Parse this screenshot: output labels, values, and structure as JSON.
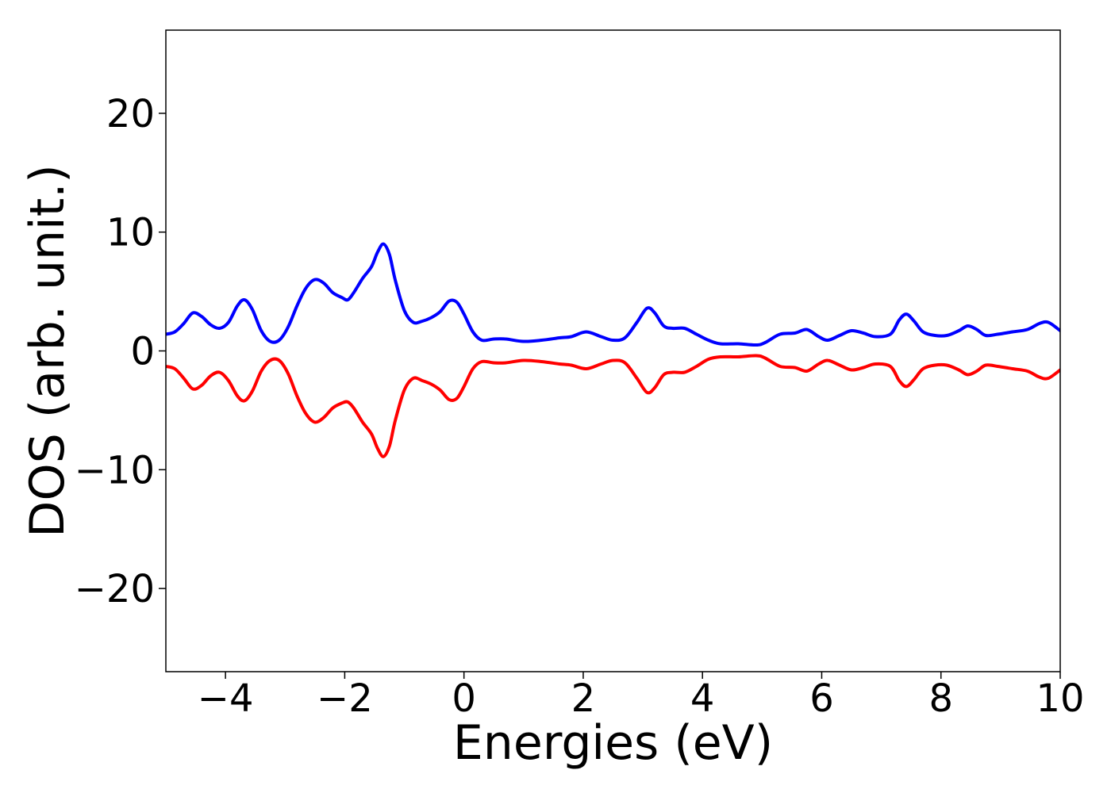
{
  "chart_data": {
    "type": "line",
    "title": "",
    "xlabel": "Energies (eV)",
    "ylabel": "DOS (arb. unit.)",
    "xlim": [
      -5,
      10
    ],
    "ylim": [
      -27,
      27
    ],
    "x_ticks": [
      -4,
      -2,
      0,
      2,
      4,
      6,
      8,
      10
    ],
    "x_tick_labels": [
      "−4",
      "−2",
      "0",
      "2",
      "4",
      "6",
      "8",
      "10"
    ],
    "y_ticks": [
      -20,
      -10,
      0,
      10,
      20
    ],
    "y_tick_labels": [
      "−20",
      "−10",
      "0",
      "10",
      "20"
    ],
    "grid": false,
    "legend": "none",
    "series": [
      {
        "color": "#0000ff",
        "points": [
          [
            -5.0,
            1.4
          ],
          [
            -4.85,
            1.6
          ],
          [
            -4.7,
            2.3
          ],
          [
            -4.55,
            3.2
          ],
          [
            -4.4,
            2.9
          ],
          [
            -4.25,
            2.2
          ],
          [
            -4.1,
            1.9
          ],
          [
            -3.95,
            2.4
          ],
          [
            -3.8,
            3.8
          ],
          [
            -3.68,
            4.3
          ],
          [
            -3.55,
            3.5
          ],
          [
            -3.4,
            1.7
          ],
          [
            -3.25,
            0.8
          ],
          [
            -3.1,
            0.9
          ],
          [
            -2.95,
            2.0
          ],
          [
            -2.8,
            3.8
          ],
          [
            -2.65,
            5.3
          ],
          [
            -2.5,
            6.0
          ],
          [
            -2.35,
            5.7
          ],
          [
            -2.2,
            4.9
          ],
          [
            -2.05,
            4.5
          ],
          [
            -1.95,
            4.3
          ],
          [
            -1.85,
            4.9
          ],
          [
            -1.7,
            6.1
          ],
          [
            -1.55,
            7.1
          ],
          [
            -1.45,
            8.3
          ],
          [
            -1.35,
            9.0
          ],
          [
            -1.25,
            8.1
          ],
          [
            -1.15,
            5.9
          ],
          [
            -1.0,
            3.4
          ],
          [
            -0.85,
            2.4
          ],
          [
            -0.7,
            2.5
          ],
          [
            -0.55,
            2.8
          ],
          [
            -0.4,
            3.3
          ],
          [
            -0.25,
            4.2
          ],
          [
            -0.12,
            4.1
          ],
          [
            0.0,
            3.1
          ],
          [
            0.15,
            1.6
          ],
          [
            0.3,
            0.9
          ],
          [
            0.5,
            1.0
          ],
          [
            0.7,
            1.0
          ],
          [
            1.0,
            0.8
          ],
          [
            1.3,
            0.9
          ],
          [
            1.6,
            1.1
          ],
          [
            1.8,
            1.2
          ],
          [
            2.05,
            1.6
          ],
          [
            2.3,
            1.2
          ],
          [
            2.5,
            0.9
          ],
          [
            2.7,
            1.1
          ],
          [
            2.9,
            2.4
          ],
          [
            3.07,
            3.6
          ],
          [
            3.2,
            3.2
          ],
          [
            3.35,
            2.1
          ],
          [
            3.5,
            1.9
          ],
          [
            3.7,
            1.9
          ],
          [
            3.9,
            1.4
          ],
          [
            4.1,
            0.9
          ],
          [
            4.3,
            0.6
          ],
          [
            4.6,
            0.6
          ],
          [
            4.9,
            0.5
          ],
          [
            5.05,
            0.7
          ],
          [
            5.3,
            1.4
          ],
          [
            5.55,
            1.5
          ],
          [
            5.75,
            1.8
          ],
          [
            5.95,
            1.2
          ],
          [
            6.1,
            0.9
          ],
          [
            6.3,
            1.3
          ],
          [
            6.5,
            1.7
          ],
          [
            6.7,
            1.5
          ],
          [
            6.9,
            1.2
          ],
          [
            7.15,
            1.4
          ],
          [
            7.3,
            2.6
          ],
          [
            7.42,
            3.1
          ],
          [
            7.55,
            2.5
          ],
          [
            7.7,
            1.6
          ],
          [
            7.9,
            1.3
          ],
          [
            8.1,
            1.3
          ],
          [
            8.3,
            1.7
          ],
          [
            8.45,
            2.1
          ],
          [
            8.6,
            1.8
          ],
          [
            8.75,
            1.3
          ],
          [
            8.95,
            1.4
          ],
          [
            9.2,
            1.6
          ],
          [
            9.45,
            1.8
          ],
          [
            9.65,
            2.3
          ],
          [
            9.8,
            2.4
          ],
          [
            10.0,
            1.7
          ]
        ]
      },
      {
        "color": "#ff0000",
        "points": [
          [
            -5.0,
            -1.3
          ],
          [
            -4.85,
            -1.5
          ],
          [
            -4.7,
            -2.3
          ],
          [
            -4.55,
            -3.2
          ],
          [
            -4.4,
            -2.9
          ],
          [
            -4.25,
            -2.1
          ],
          [
            -4.1,
            -1.8
          ],
          [
            -3.95,
            -2.5
          ],
          [
            -3.8,
            -3.8
          ],
          [
            -3.68,
            -4.2
          ],
          [
            -3.55,
            -3.4
          ],
          [
            -3.4,
            -1.7
          ],
          [
            -3.25,
            -0.8
          ],
          [
            -3.1,
            -0.8
          ],
          [
            -2.95,
            -1.9
          ],
          [
            -2.8,
            -3.8
          ],
          [
            -2.65,
            -5.3
          ],
          [
            -2.5,
            -6.0
          ],
          [
            -2.35,
            -5.6
          ],
          [
            -2.2,
            -4.8
          ],
          [
            -2.05,
            -4.4
          ],
          [
            -1.95,
            -4.3
          ],
          [
            -1.85,
            -4.8
          ],
          [
            -1.7,
            -6.0
          ],
          [
            -1.55,
            -7.0
          ],
          [
            -1.45,
            -8.2
          ],
          [
            -1.35,
            -8.9
          ],
          [
            -1.25,
            -8.0
          ],
          [
            -1.15,
            -5.8
          ],
          [
            -1.0,
            -3.3
          ],
          [
            -0.85,
            -2.3
          ],
          [
            -0.7,
            -2.5
          ],
          [
            -0.55,
            -2.8
          ],
          [
            -0.4,
            -3.3
          ],
          [
            -0.25,
            -4.1
          ],
          [
            -0.12,
            -4.0
          ],
          [
            0.0,
            -3.0
          ],
          [
            0.15,
            -1.5
          ],
          [
            0.3,
            -0.9
          ],
          [
            0.5,
            -1.0
          ],
          [
            0.7,
            -1.0
          ],
          [
            1.0,
            -0.8
          ],
          [
            1.3,
            -0.9
          ],
          [
            1.6,
            -1.1
          ],
          [
            1.8,
            -1.2
          ],
          [
            2.05,
            -1.5
          ],
          [
            2.3,
            -1.1
          ],
          [
            2.5,
            -0.8
          ],
          [
            2.7,
            -1.0
          ],
          [
            2.9,
            -2.3
          ],
          [
            3.07,
            -3.5
          ],
          [
            3.2,
            -3.1
          ],
          [
            3.35,
            -2.0
          ],
          [
            3.5,
            -1.8
          ],
          [
            3.7,
            -1.8
          ],
          [
            3.9,
            -1.3
          ],
          [
            4.1,
            -0.7
          ],
          [
            4.3,
            -0.5
          ],
          [
            4.6,
            -0.5
          ],
          [
            4.9,
            -0.4
          ],
          [
            5.05,
            -0.6
          ],
          [
            5.3,
            -1.3
          ],
          [
            5.55,
            -1.4
          ],
          [
            5.75,
            -1.7
          ],
          [
            5.95,
            -1.1
          ],
          [
            6.1,
            -0.8
          ],
          [
            6.3,
            -1.2
          ],
          [
            6.5,
            -1.6
          ],
          [
            6.7,
            -1.4
          ],
          [
            6.9,
            -1.1
          ],
          [
            7.15,
            -1.3
          ],
          [
            7.3,
            -2.5
          ],
          [
            7.42,
            -3.0
          ],
          [
            7.55,
            -2.4
          ],
          [
            7.7,
            -1.5
          ],
          [
            7.9,
            -1.2
          ],
          [
            8.1,
            -1.2
          ],
          [
            8.3,
            -1.6
          ],
          [
            8.45,
            -2.0
          ],
          [
            8.6,
            -1.7
          ],
          [
            8.75,
            -1.2
          ],
          [
            8.95,
            -1.3
          ],
          [
            9.2,
            -1.5
          ],
          [
            9.45,
            -1.7
          ],
          [
            9.65,
            -2.2
          ],
          [
            9.8,
            -2.3
          ],
          [
            10.0,
            -1.6
          ]
        ]
      }
    ]
  }
}
